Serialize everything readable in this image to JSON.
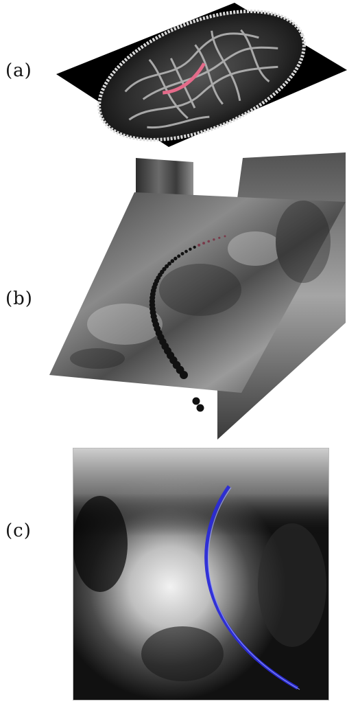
{
  "panels": [
    {
      "id": "a",
      "label": "(a)"
    },
    {
      "id": "b",
      "label": "(b)"
    },
    {
      "id": "c",
      "label": "(c)"
    }
  ],
  "colors": {
    "background": "#ffffff",
    "brain_slice": "#000000",
    "white_matter": "#bdbdbd",
    "tract_highlight": "#e46b8a",
    "tract_beads": "#111111",
    "fitted_curve": "#2a2ad8"
  }
}
